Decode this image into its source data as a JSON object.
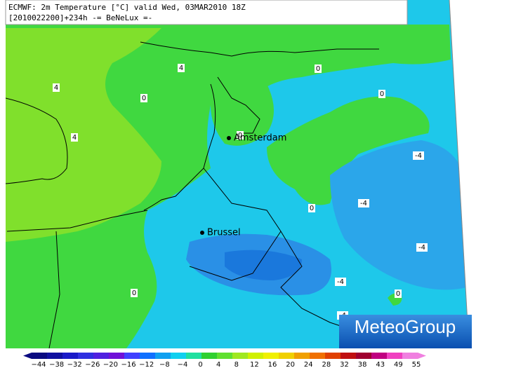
{
  "header": {
    "line1": "ECMWF: 2m Temperature [°C] valid Wed, 03MAR2010 18Z",
    "line2": "[2010022200]+234h -= BeNeLux =-"
  },
  "cities": [
    {
      "name": "Amsterdam"
    },
    {
      "name": "Brussel"
    }
  ],
  "contour_labels": [
    "4",
    "4",
    "4",
    "0",
    "0",
    "0",
    "0",
    "0",
    "0",
    "0",
    "-4",
    "-4",
    "-4",
    "-4",
    "-4"
  ],
  "colorbar": {
    "labels": [
      "−44",
      "−38",
      "−32",
      "−26",
      "−20",
      "−16",
      "−12",
      "−8",
      "−4",
      "0",
      "4",
      "8",
      "12",
      "16",
      "20",
      "24",
      "28",
      "32",
      "38",
      "43",
      "49",
      "55"
    ],
    "colors": [
      "#0a0a80",
      "#1010a0",
      "#1a1ac8",
      "#3030e0",
      "#5020e0",
      "#7010d8",
      "#4040ff",
      "#1070ff",
      "#10a0f0",
      "#10d0f0",
      "#20e0a0",
      "#30d030",
      "#60e030",
      "#a0e820",
      "#d0f000",
      "#f0f000",
      "#f0d000",
      "#f0a000",
      "#f07000",
      "#e04000",
      "#c01010",
      "#a00030",
      "#c00080",
      "#f040c0",
      "#f080e0"
    ]
  },
  "logo": "MeteoGroup"
}
